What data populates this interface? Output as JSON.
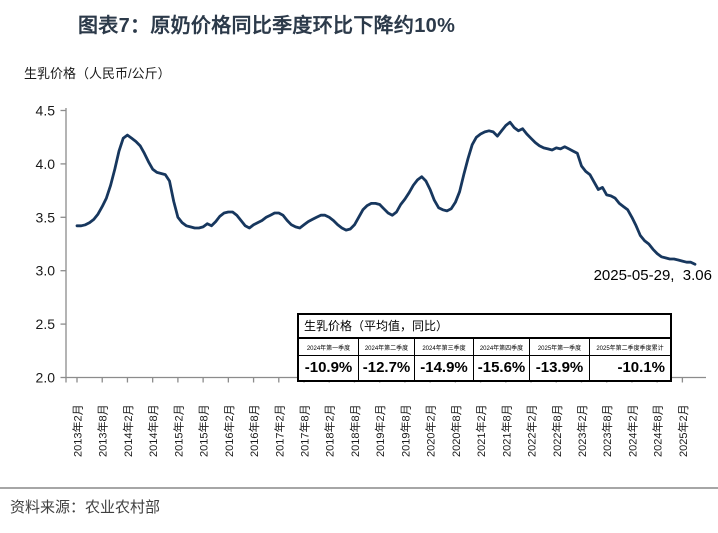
{
  "header": {
    "title": "图表7：原奶价格同比季度环比下降约10%"
  },
  "chart": {
    "unit_label": "生乳价格（人民币/公斤）",
    "annotation": "2025-05-29,  3.06"
  },
  "chart_data": {
    "type": "line",
    "title": "生乳价格",
    "ylabel": "生乳价格（人民币/公斤）",
    "ylim": [
      2.0,
      4.5
    ],
    "ytick_labels": [
      "2.0",
      "2.5",
      "3.0",
      "3.5",
      "4.0",
      "4.5"
    ],
    "grid": false,
    "legend": "none",
    "line_color": "#17375E",
    "x_start": "2013-02",
    "x_end": "2025-05",
    "x_label_every_months": 6,
    "x_labels": [
      "2013年2月",
      "2013年8月",
      "2014年2月",
      "2014年8月",
      "2015年2月",
      "2015年8月",
      "2016年2月",
      "2016年8月",
      "2017年2月",
      "2017年8月",
      "2018年2月",
      "2018年8月",
      "2019年2月",
      "2019年8月",
      "2020年2月",
      "2020年8月",
      "2021年2月",
      "2021年8月",
      "2022年2月",
      "2022年8月",
      "2023年2月",
      "2023年8月",
      "2024年2月",
      "2024年8月",
      "2025年2月"
    ],
    "values": [
      3.42,
      3.42,
      3.43,
      3.45,
      3.48,
      3.53,
      3.6,
      3.68,
      3.8,
      3.95,
      4.12,
      4.24,
      4.27,
      4.24,
      4.21,
      4.17,
      4.1,
      4.02,
      3.95,
      3.92,
      3.91,
      3.9,
      3.84,
      3.65,
      3.5,
      3.45,
      3.42,
      3.41,
      3.4,
      3.4,
      3.41,
      3.44,
      3.42,
      3.46,
      3.51,
      3.54,
      3.55,
      3.55,
      3.52,
      3.47,
      3.42,
      3.4,
      3.43,
      3.45,
      3.47,
      3.5,
      3.52,
      3.54,
      3.54,
      3.52,
      3.47,
      3.43,
      3.41,
      3.4,
      3.43,
      3.46,
      3.48,
      3.5,
      3.52,
      3.52,
      3.5,
      3.47,
      3.43,
      3.4,
      3.38,
      3.39,
      3.43,
      3.5,
      3.57,
      3.61,
      3.63,
      3.63,
      3.62,
      3.58,
      3.54,
      3.52,
      3.55,
      3.62,
      3.67,
      3.73,
      3.8,
      3.85,
      3.88,
      3.84,
      3.76,
      3.66,
      3.59,
      3.57,
      3.56,
      3.58,
      3.64,
      3.74,
      3.9,
      4.05,
      4.18,
      4.25,
      4.28,
      4.3,
      4.31,
      4.3,
      4.26,
      4.31,
      4.36,
      4.39,
      4.34,
      4.31,
      4.33,
      4.28,
      4.24,
      4.2,
      4.17,
      4.15,
      4.14,
      4.13,
      4.15,
      4.14,
      4.16,
      4.14,
      4.12,
      4.1,
      3.98,
      3.93,
      3.9,
      3.83,
      3.76,
      3.78,
      3.71,
      3.7,
      3.68,
      3.63,
      3.6,
      3.57,
      3.5,
      3.42,
      3.33,
      3.28,
      3.25,
      3.2,
      3.16,
      3.13,
      3.12,
      3.11,
      3.11,
      3.1,
      3.09,
      3.08,
      3.08,
      3.06
    ],
    "annotation": {
      "text": "2025-05-29,  3.06",
      "x": "2025-05",
      "y": 3.06
    }
  },
  "table": {
    "title": "生乳价格（平均值，同比）",
    "columns": [
      "2024年第一季度",
      "2024年第二季度",
      "2024年第三季度",
      "2024年第四季度",
      "2025年第一季度",
      "2025年第二季度季度累计"
    ],
    "values": [
      "-10.9%",
      "-12.7%",
      "-14.9%",
      "-15.6%",
      "-13.9%",
      "-10.1%"
    ]
  },
  "footer": {
    "source": "资料来源：农业农村部"
  }
}
